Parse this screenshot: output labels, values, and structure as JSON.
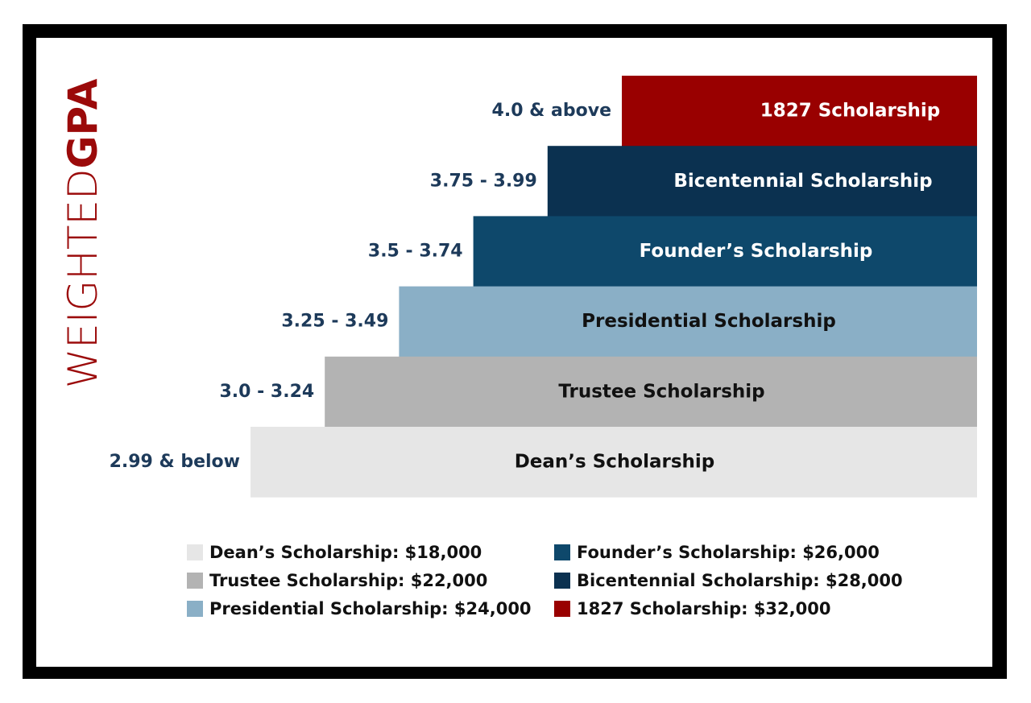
{
  "axis_title": {
    "light": "WEIGHTED",
    "bold": "GPA",
    "color": "#9b0a0a"
  },
  "tiers": [
    {
      "gpa": "4.0 & above",
      "name": "1827 Scholarship",
      "color": "#990000",
      "text_color": "#ffffff"
    },
    {
      "gpa": "3.75 - 3.99",
      "name": "Bicentennial Scholarship",
      "color": "#0b3150",
      "text_color": "#ffffff"
    },
    {
      "gpa": "3.5 - 3.74",
      "name": "Founder’s Scholarship",
      "color": "#0e486b",
      "text_color": "#ffffff"
    },
    {
      "gpa": "3.25 - 3.49",
      "name": "Presidential Scholarship",
      "color": "#8aafc6",
      "text_color": "#111111"
    },
    {
      "gpa": "3.0 - 3.24",
      "name": "Trustee Scholarship",
      "color": "#b3b3b3",
      "text_color": "#111111"
    },
    {
      "gpa": "2.99 & below",
      "name": "Dean’s Scholarship",
      "color": "#e6e6e6",
      "text_color": "#111111"
    }
  ],
  "legend": [
    {
      "label": "Dean’s Scholarship: $18,000",
      "color": "#e6e6e6"
    },
    {
      "label": "Trustee Scholarship: $22,000",
      "color": "#b3b3b3"
    },
    {
      "label": "Presidential Scholarship: $24,000",
      "color": "#8aafc6"
    },
    {
      "label": "Founder’s Scholarship: $26,000",
      "color": "#0e486b"
    },
    {
      "label": "Bicentennial Scholarship: $28,000",
      "color": "#0b3150"
    },
    {
      "label": "1827 Scholarship: $32,000",
      "color": "#990000"
    }
  ]
}
